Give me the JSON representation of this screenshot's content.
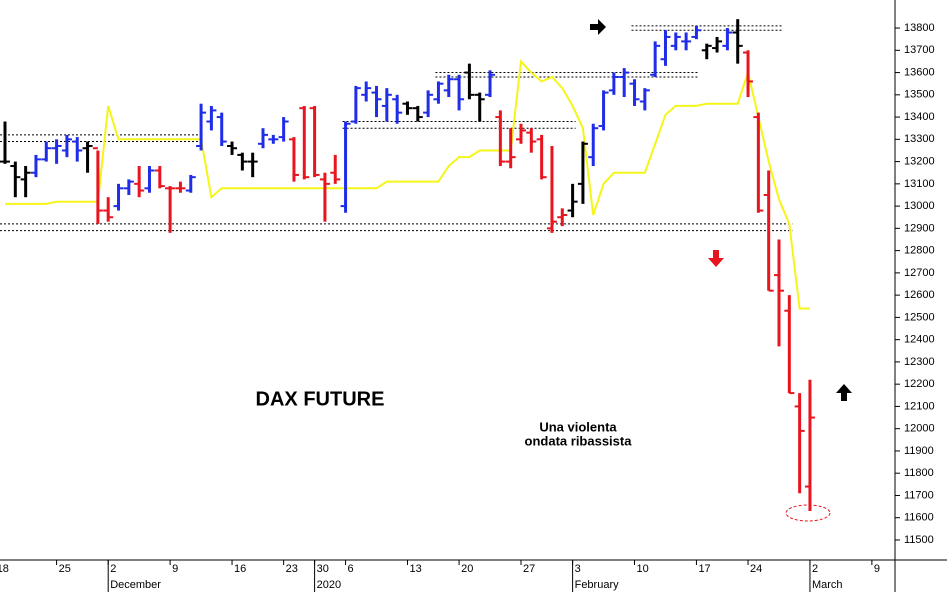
{
  "chart_data": {
    "type": "ohlc",
    "title": "DAX FUTURE",
    "annotation": [
      "Una violenta",
      "ondata ribassista"
    ],
    "annotation_color": "#e8141e",
    "x_groups": [
      "December",
      "2020",
      "February",
      "March"
    ],
    "categories": [
      "18",
      null,
      null,
      null,
      null,
      null,
      "25",
      null,
      null,
      null,
      null,
      "2",
      null,
      null,
      null,
      null,
      null,
      "9",
      null,
      null,
      null,
      null,
      null,
      "16",
      null,
      null,
      null,
      null,
      "23",
      null,
      null,
      "30",
      null,
      null,
      "6",
      null,
      null,
      null,
      null,
      null,
      "13",
      null,
      null,
      null,
      null,
      "20",
      null,
      null,
      null,
      null,
      null,
      "27",
      null,
      null,
      null,
      null,
      "3",
      null,
      null,
      null,
      null,
      null,
      "10",
      null,
      null,
      null,
      null,
      null,
      "17",
      null,
      null,
      null,
      null,
      "24",
      null,
      null,
      null,
      null,
      null,
      "2",
      null,
      null,
      null,
      null,
      null,
      "9",
      null
    ],
    "open": [
      null,
      13200,
      13180,
      13120,
      13150,
      13210,
      13260,
      13250,
      13290,
      13260,
      13260,
      12980,
      13000,
      13080,
      13100,
      13080,
      13160,
      13080,
      13080,
      13070,
      13270,
      13380,
      13400,
      13270,
      13230,
      13200,
      13280,
      13300,
      13310,
      13300,
      13440,
      13440,
      13120,
      13150,
      13000,
      13380,
      13500,
      13510,
      13450,
      13480,
      13460,
      13440,
      13420,
      13480,
      13520,
      13570,
      13600,
      13500,
      13500,
      13400,
      13200,
      13300,
      13330,
      13300,
      12900,
      12950,
      12980,
      13100,
      13220,
      13360,
      13520,
      13580,
      13550,
      13470,
      13590,
      13660,
      13720,
      13740,
      13760,
      13700,
      13710,
      13720,
      13780,
      13690,
      13400,
      13050,
      12690,
      12530,
      12100,
      11740,
      null,
      null,
      null,
      null,
      null,
      null,
      null
    ],
    "high": [
      null,
      13380,
      13200,
      13180,
      13230,
      13290,
      13300,
      13320,
      13310,
      13290,
      13250,
      13040,
      13100,
      13120,
      13180,
      13180,
      13180,
      13090,
      13110,
      13140,
      13460,
      13450,
      13420,
      13290,
      13240,
      13240,
      13350,
      13320,
      13400,
      13310,
      13450,
      13450,
      13150,
      13230,
      13380,
      13540,
      13560,
      13540,
      13530,
      13500,
      13470,
      13450,
      13520,
      13560,
      13590,
      13590,
      13640,
      13510,
      13610,
      13430,
      13350,
      13370,
      13350,
      13320,
      13270,
      12990,
      13100,
      13290,
      13370,
      13520,
      13600,
      13620,
      13570,
      13530,
      13740,
      13790,
      13780,
      13780,
      13810,
      13730,
      13760,
      13800,
      13840,
      13700,
      13420,
      13160,
      12850,
      12600,
      12160,
      12220,
      null,
      null,
      null,
      null,
      null,
      null,
      null
    ],
    "low": [
      null,
      13190,
      13040,
      13040,
      13130,
      13200,
      13190,
      13220,
      13200,
      13150,
      12920,
      12930,
      12980,
      13050,
      13040,
      13060,
      13080,
      12880,
      13060,
      13060,
      13250,
      13340,
      13270,
      13230,
      13160,
      13130,
      13260,
      13280,
      13290,
      13110,
      13120,
      13130,
      12930,
      13100,
      12970,
      13370,
      13470,
      13400,
      13380,
      13370,
      13410,
      13380,
      13400,
      13460,
      13490,
      13430,
      13480,
      13380,
      13490,
      13180,
      13170,
      13280,
      13240,
      13120,
      12880,
      12910,
      12950,
      13010,
      13180,
      13340,
      13500,
      13490,
      13450,
      13430,
      13580,
      13630,
      13700,
      13700,
      13750,
      13660,
      13690,
      13700,
      13640,
      13490,
      12970,
      12620,
      12370,
      12160,
      11710,
      11630,
      null,
      null,
      null,
      null,
      null,
      null,
      null
    ],
    "close": [
      null,
      13200,
      13130,
      13150,
      13210,
      13260,
      13270,
      13300,
      13250,
      13270,
      12980,
      12950,
      13080,
      13110,
      13070,
      13160,
      13090,
      13080,
      13080,
      13130,
      13420,
      13430,
      13290,
      13260,
      13200,
      13200,
      13320,
      13300,
      13380,
      13140,
      13130,
      13140,
      13100,
      13120,
      13370,
      13530,
      13530,
      13480,
      13500,
      13420,
      13440,
      13400,
      13500,
      13550,
      13570,
      13480,
      13500,
      13480,
      13590,
      13200,
      13220,
      13340,
      13290,
      13130,
      12930,
      12960,
      13020,
      13280,
      13350,
      13510,
      13580,
      13600,
      13480,
      13520,
      13720,
      13760,
      13760,
      13740,
      13790,
      13720,
      13740,
      13780,
      13720,
      13560,
      12980,
      12620,
      12620,
      12160,
      11990,
      12050,
      null,
      null,
      null,
      null,
      null,
      null,
      null
    ],
    "bar_colors": [
      null,
      "#000000",
      "#000000",
      "#000000",
      "#1f2de8",
      "#1f2de8",
      "#1f2de8",
      "#1f2de8",
      "#1f2de8",
      "#000000",
      "#e8141e",
      "#e8141e",
      "#1f2de8",
      "#1f2de8",
      "#e8141e",
      "#1f2de8",
      "#e8141e",
      "#e8141e",
      "#e8141e",
      "#1f2de8",
      "#1f2de8",
      "#1f2de8",
      "#1f2de8",
      "#000000",
      "#000000",
      "#000000",
      "#1f2de8",
      "#1f2de8",
      "#1f2de8",
      "#e8141e",
      "#e8141e",
      "#e8141e",
      "#e8141e",
      "#e8141e",
      "#1f2de8",
      "#1f2de8",
      "#1f2de8",
      "#1f2de8",
      "#1f2de8",
      "#1f2de8",
      "#000000",
      "#000000",
      "#1f2de8",
      "#1f2de8",
      "#1f2de8",
      "#1f2de8",
      "#000000",
      "#000000",
      "#1f2de8",
      "#e8141e",
      "#e8141e",
      "#e8141e",
      "#e8141e",
      "#e8141e",
      "#e8141e",
      "#e8141e",
      "#000000",
      "#000000",
      "#1f2de8",
      "#1f2de8",
      "#1f2de8",
      "#1f2de8",
      "#1f2de8",
      "#1f2de8",
      "#1f2de8",
      "#1f2de8",
      "#1f2de8",
      "#1f2de8",
      "#1f2de8",
      "#000000",
      "#000000",
      "#1f2de8",
      "#000000",
      "#e8141e",
      "#e8141e",
      "#e8141e",
      "#e8141e",
      "#e8141e",
      "#e8141e",
      "#e8141e",
      null,
      null,
      null,
      null,
      null,
      null,
      null
    ],
    "line": {
      "color": "#f5f51a",
      "values": [
        null,
        13010,
        13010,
        13010,
        13010,
        13010,
        13020,
        13020,
        13020,
        13020,
        13020,
        13450,
        13300,
        13300,
        13300,
        13300,
        13300,
        13300,
        13300,
        13300,
        13300,
        13040,
        13080,
        13080,
        13080,
        13080,
        13080,
        13080,
        13080,
        13080,
        13080,
        13080,
        13080,
        13080,
        13080,
        13080,
        13080,
        13080,
        13110,
        13110,
        13110,
        13110,
        13110,
        13110,
        13180,
        13220,
        13220,
        13250,
        13250,
        13250,
        13250,
        13650,
        13600,
        13560,
        13580,
        13530,
        13450,
        13350,
        12960,
        13100,
        13150,
        13150,
        13150,
        13150,
        13280,
        13410,
        13450,
        13450,
        13450,
        13460,
        13460,
        13460,
        13460,
        13600,
        13400,
        13200,
        13030,
        12920,
        12540,
        12540,
        null,
        null,
        null,
        null,
        null,
        null,
        null
      ]
    },
    "levels": [
      [
        13290,
        13320
      ],
      [
        13350,
        13380
      ],
      [
        13580,
        13600
      ],
      [
        13790,
        13810
      ],
      [
        12890,
        12920
      ]
    ],
    "ylim": [
      11410,
      13926
    ],
    "yticks": [
      11500,
      11600,
      11700,
      11800,
      11900,
      12000,
      12100,
      12200,
      12300,
      12400,
      12500,
      12600,
      12700,
      12800,
      12900,
      13000,
      13100,
      13200,
      13300,
      13400,
      13500,
      13600,
      13700,
      13800
    ]
  }
}
